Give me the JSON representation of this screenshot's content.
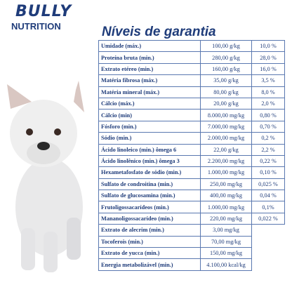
{
  "logo": {
    "brand": "BULLY",
    "subtitle": "NUTRITION"
  },
  "title": "Níveis de garantia",
  "table": {
    "rows": [
      [
        "Umidade (máx.)",
        "100,00 g/kg",
        "10,0 %"
      ],
      [
        "Proteína bruta (min.)",
        "280,00 g/kg",
        "28,0 %"
      ],
      [
        "Extrato etéreo (min.)",
        "160,00 g/kg",
        "16,0 %"
      ],
      [
        "Matéria fibrosa (máx.)",
        "35,00 g/kg",
        "3,5 %"
      ],
      [
        "Matéria mineral (máx.)",
        "80,00 g/kg",
        "8,0 %"
      ],
      [
        "Cálcio (máx.)",
        "20,00 g/kg",
        "2,0 %"
      ],
      [
        "Cálcio (min)",
        "8.000,00 mg/kg",
        "0,80 %"
      ],
      [
        "Fósforo (min.)",
        "7.000,00 mg/kg",
        "0,70 %"
      ],
      [
        "Sódio (min.)",
        "2.000,00 mg/kg",
        "0,2 %"
      ],
      [
        "Ácido linoleico (min.) ômega 6",
        "22,00 g/kg",
        "2,2 %"
      ],
      [
        "Ácido linolênico (min.) ômega 3",
        "2.200,00 mg/kg",
        "0,22 %"
      ],
      [
        "Hexametafosfato de sódio (min.)",
        "1.000,00 mg/kg",
        "0,10 %"
      ],
      [
        "Sulfato de condroitina (min.)",
        "250,00 mg/kg",
        "0,025 %"
      ],
      [
        "Sulfato de glucosamina (min.)",
        "400,00 mg/kg",
        "0,04 %"
      ],
      [
        "Frutoligossacarídeos (min.)",
        "1.000,00 mg/kg",
        "0,1%"
      ],
      [
        "Mananoligossacarídeo (min.)",
        "220,00 mg/kg",
        "0,022 %"
      ],
      [
        "Extrato de alecrim (min.)",
        "3,00 mg/kg"
      ],
      [
        "Tocoferois (min.)",
        "70,00 mg/kg"
      ],
      [
        "Extrato de yucca (min.)",
        "150,00 mg/kg"
      ],
      [
        "Energia metabolizável (min.)",
        "4.100,00 kcal/kg"
      ]
    ]
  }
}
